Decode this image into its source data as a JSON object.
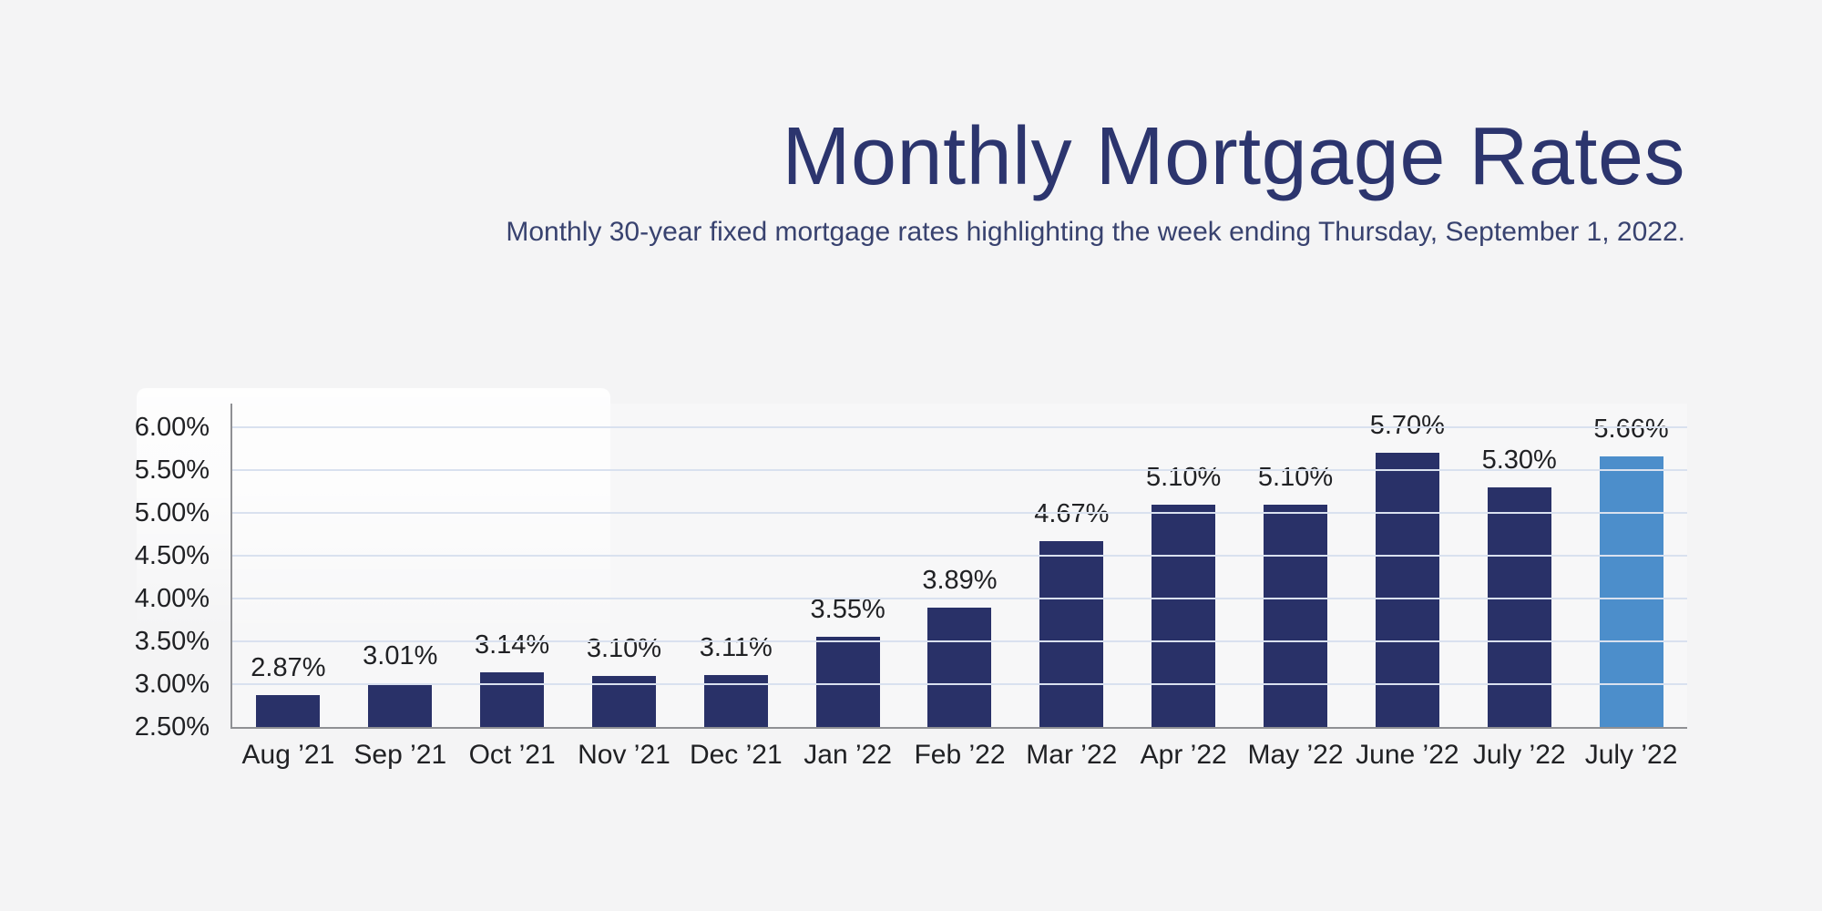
{
  "header": {
    "title": "Monthly Mortgage Rates",
    "subtitle": "Monthly 30-year fixed mortgage rates highlighting the week ending Thursday, September 1, 2022.",
    "title_color": "#2c356e",
    "subtitle_color": "#38426f"
  },
  "chart_data": {
    "type": "bar",
    "title": "Monthly Mortgage Rates",
    "subtitle": "Monthly 30-year fixed mortgage rates highlighting the week ending Thursday, September 1, 2022.",
    "categories": [
      "Aug ’21",
      "Sep ’21",
      "Oct ’21",
      "Nov ’21",
      "Dec ’21",
      "Jan ’22",
      "Feb ’22",
      "Mar ’22",
      "Apr ’22",
      "May ’22",
      "June ’22",
      "July ’22",
      "July ’22"
    ],
    "values": [
      2.87,
      3.01,
      3.14,
      3.1,
      3.11,
      3.55,
      3.89,
      4.67,
      5.1,
      5.1,
      5.7,
      5.3,
      5.66
    ],
    "value_labels": [
      "2.87%",
      "3.01%",
      "3.14%",
      "3.10%",
      "3.11%",
      "3.55%",
      "3.89%",
      "4.67%",
      "5.10%",
      "5.10%",
      "5.70%",
      "5.30%",
      "5.66%"
    ],
    "highlighted_index": 12,
    "yticks": [
      {
        "value": 2.5,
        "label": "2.50%"
      },
      {
        "value": 3.0,
        "label": "3.00%"
      },
      {
        "value": 3.5,
        "label": "3.50%"
      },
      {
        "value": 4.0,
        "label": "4.00%"
      },
      {
        "value": 4.5,
        "label": "4.50%"
      },
      {
        "value": 5.0,
        "label": "5.00%"
      },
      {
        "value": 5.5,
        "label": "5.50%"
      },
      {
        "value": 6.0,
        "label": "6.00%"
      }
    ],
    "ylim": [
      2.5,
      6.0
    ],
    "xlabel": "",
    "ylabel": "",
    "grid": true,
    "legend": "none",
    "colors": {
      "bar": "#293168",
      "bar_highlight": "#4c8ecb",
      "gridline": "#d9e1ef",
      "axis": "#8f9094",
      "tick_label": "#202124",
      "value_label": "#202124",
      "background": "#f4f4f5"
    }
  }
}
